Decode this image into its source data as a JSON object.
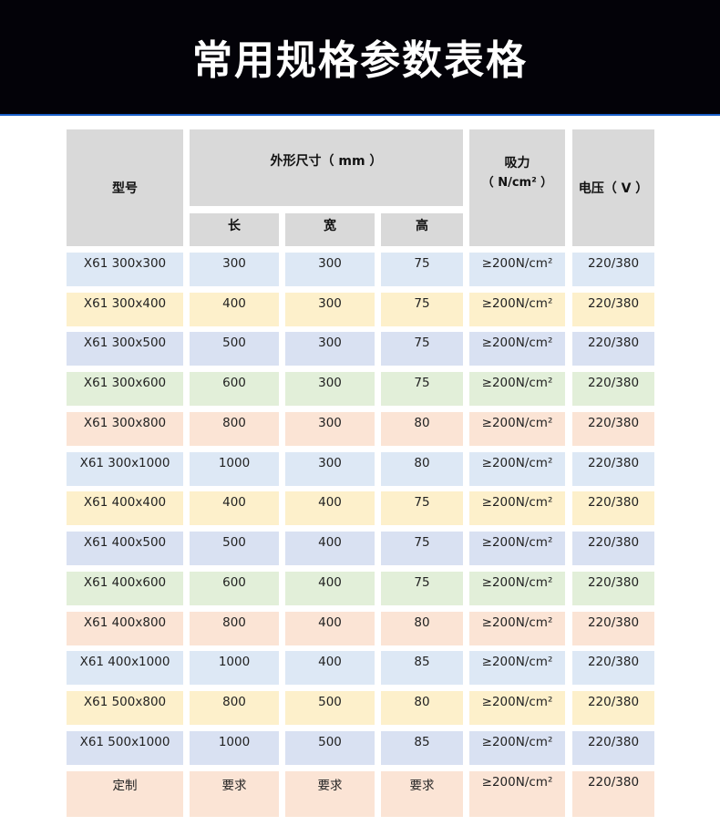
{
  "title": "常用规格参数表格",
  "headers": {
    "model": "型号",
    "dims": "外形尺寸（ mm ）",
    "length": "长",
    "width": "宽",
    "height": "高",
    "suction": "吸力",
    "suction_unit": "（ N/cm² ）",
    "voltage": "电压（ V ）"
  },
  "row_colors": {
    "blue": "#dde8f5",
    "yellow": "#fdf0cb",
    "periwinkle": "#d9e1f2",
    "green": "#e2efd9",
    "peach": "#fbe4d5"
  },
  "rows": [
    {
      "model": "X61 300x300",
      "l": "300",
      "w": "300",
      "h": "75",
      "suction": "≥200N/cm²",
      "voltage": "220/380",
      "color": "blue"
    },
    {
      "model": "X61 300x400",
      "l": "400",
      "w": "300",
      "h": "75",
      "suction": "≥200N/cm²",
      "voltage": "220/380",
      "color": "yellow"
    },
    {
      "model": "X61 300x500",
      "l": "500",
      "w": "300",
      "h": "75",
      "suction": "≥200N/cm²",
      "voltage": "220/380",
      "color": "periwinkle"
    },
    {
      "model": "X61 300x600",
      "l": "600",
      "w": "300",
      "h": "75",
      "suction": "≥200N/cm²",
      "voltage": "220/380",
      "color": "green"
    },
    {
      "model": "X61 300x800",
      "l": "800",
      "w": "300",
      "h": "80",
      "suction": "≥200N/cm²",
      "voltage": "220/380",
      "color": "peach"
    },
    {
      "model": "X61 300x1000",
      "l": "1000",
      "w": "300",
      "h": "80",
      "suction": "≥200N/cm²",
      "voltage": "220/380",
      "color": "blue"
    },
    {
      "model": "X61 400x400",
      "l": "400",
      "w": "400",
      "h": "75",
      "suction": "≥200N/cm²",
      "voltage": "220/380",
      "color": "yellow"
    },
    {
      "model": "X61 400x500",
      "l": "500",
      "w": "400",
      "h": "75",
      "suction": "≥200N/cm²",
      "voltage": "220/380",
      "color": "periwinkle"
    },
    {
      "model": "X61 400x600",
      "l": "600",
      "w": "400",
      "h": "75",
      "suction": "≥200N/cm²",
      "voltage": "220/380",
      "color": "green"
    },
    {
      "model": "X61 400x800",
      "l": "800",
      "w": "400",
      "h": "80",
      "suction": "≥200N/cm²",
      "voltage": "220/380",
      "color": "peach"
    },
    {
      "model": "X61 400x1000",
      "l": "1000",
      "w": "400",
      "h": "85",
      "suction": "≥200N/cm²",
      "voltage": "220/380",
      "color": "blue"
    },
    {
      "model": "X61 500x800",
      "l": "800",
      "w": "500",
      "h": "80",
      "suction": "≥200N/cm²",
      "voltage": "220/380",
      "color": "yellow"
    },
    {
      "model": "X61 500x1000",
      "l": "1000",
      "w": "500",
      "h": "85",
      "suction": "≥200N/cm²",
      "voltage": "220/380",
      "color": "periwinkle"
    },
    {
      "model": "定制",
      "l": "要求",
      "w": "要求",
      "h": "要求",
      "suction": "≥200N/cm²",
      "voltage": "220/380",
      "color": "peach"
    }
  ]
}
